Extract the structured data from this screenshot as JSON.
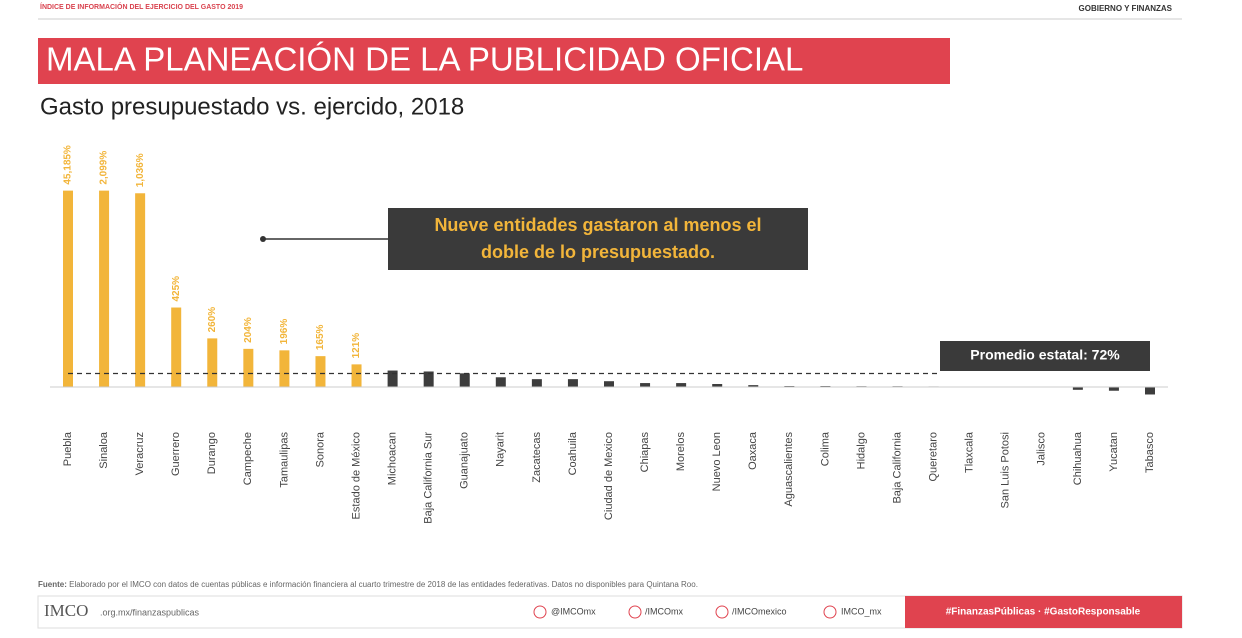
{
  "header": {
    "left": "ÍNDICE DE INFORMACIÓN DEL EJERCICIO DEL GASTO 2019",
    "right": "GOBIERNO Y FINANZAS"
  },
  "chart_data": {
    "type": "bar",
    "title": "MALA PLANEACIÓN DE LA PUBLICIDAD OFICIAL",
    "subtitle": "Gasto presupuestado vs. ejercido, 2018",
    "categories": [
      "Puebla",
      "Sinaloa",
      "Veracruz",
      "Guerrero",
      "Durango",
      "Campeche",
      "Tamaulipas",
      "Sonora",
      "Estado de México",
      "Michoacan",
      "Baja California Sur",
      "Guanajuato",
      "Nayarit",
      "Zacatecas",
      "Coahuila",
      "Ciudad de Mexico",
      "Chiapas",
      "Morelos",
      "Nuevo Leon",
      "Oaxaca",
      "Aguascalientes",
      "Colima",
      "Hidalgo",
      "Baja California",
      "Queretaro",
      "Tlaxcala",
      "San Luis Potosi",
      "Jalisco",
      "Chihuahua",
      "Yucatan",
      "Tabasco"
    ],
    "values": [
      45185,
      2099,
      1036,
      425,
      260,
      204,
      196,
      165,
      121,
      88,
      83,
      73,
      52,
      42,
      42,
      31,
      21,
      21,
      16,
      10,
      5,
      5,
      4,
      4,
      3,
      0,
      0,
      0,
      -15,
      -20,
      -40
    ],
    "value_labels": [
      "45,185%",
      "2,099%",
      "1,036%",
      "425%",
      "260%",
      "204%",
      "196%",
      "165%",
      "121%",
      null,
      null,
      null,
      null,
      null,
      null,
      null,
      null,
      null,
      null,
      null,
      null,
      null,
      null,
      null,
      null,
      null,
      null,
      null,
      null,
      null,
      null
    ],
    "colors": [
      "#f2b53a",
      "#f2b53a",
      "#f2b53a",
      "#f2b53a",
      "#f2b53a",
      "#f2b53a",
      "#f2b53a",
      "#f2b53a",
      "#f2b53a",
      "#3d3d3d",
      "#3d3d3d",
      "#3d3d3d",
      "#3d3d3d",
      "#3d3d3d",
      "#3d3d3d",
      "#3d3d3d",
      "#3d3d3d",
      "#3d3d3d",
      "#3d3d3d",
      "#3d3d3d",
      "#3d3d3d",
      "#3d3d3d",
      "#3d3d3d",
      "#3d3d3d",
      "#3d3d3d",
      "#3d3d3d",
      "#3d3d3d",
      "#3d3d3d",
      "#3d3d3d",
      "#3d3d3d",
      "#3d3d3d"
    ],
    "ylim": [
      -50,
      1050
    ],
    "average": 72,
    "average_label": "Promedio estatal: 72%",
    "annotation": [
      "Nueve entidades gastaron al menos el",
      "doble de lo presupuestado."
    ]
  },
  "source": {
    "label": "Fuente:",
    "text": " Elaborado por el IMCO con datos de cuentas públicas e información financiera al cuarto trimestre de 2018 de las entidades federativas. Datos no disponibles para Quintana Roo."
  },
  "footer": {
    "logo": "IMCO",
    "url": ".org.mx/finanzaspublicas",
    "social": [
      "@IMCOmx",
      "/IMCOmx",
      "/IMCOmexico",
      "IMCO_mx"
    ],
    "hashtags": "#FinanzasPúblicas · #GastoResponsable"
  }
}
